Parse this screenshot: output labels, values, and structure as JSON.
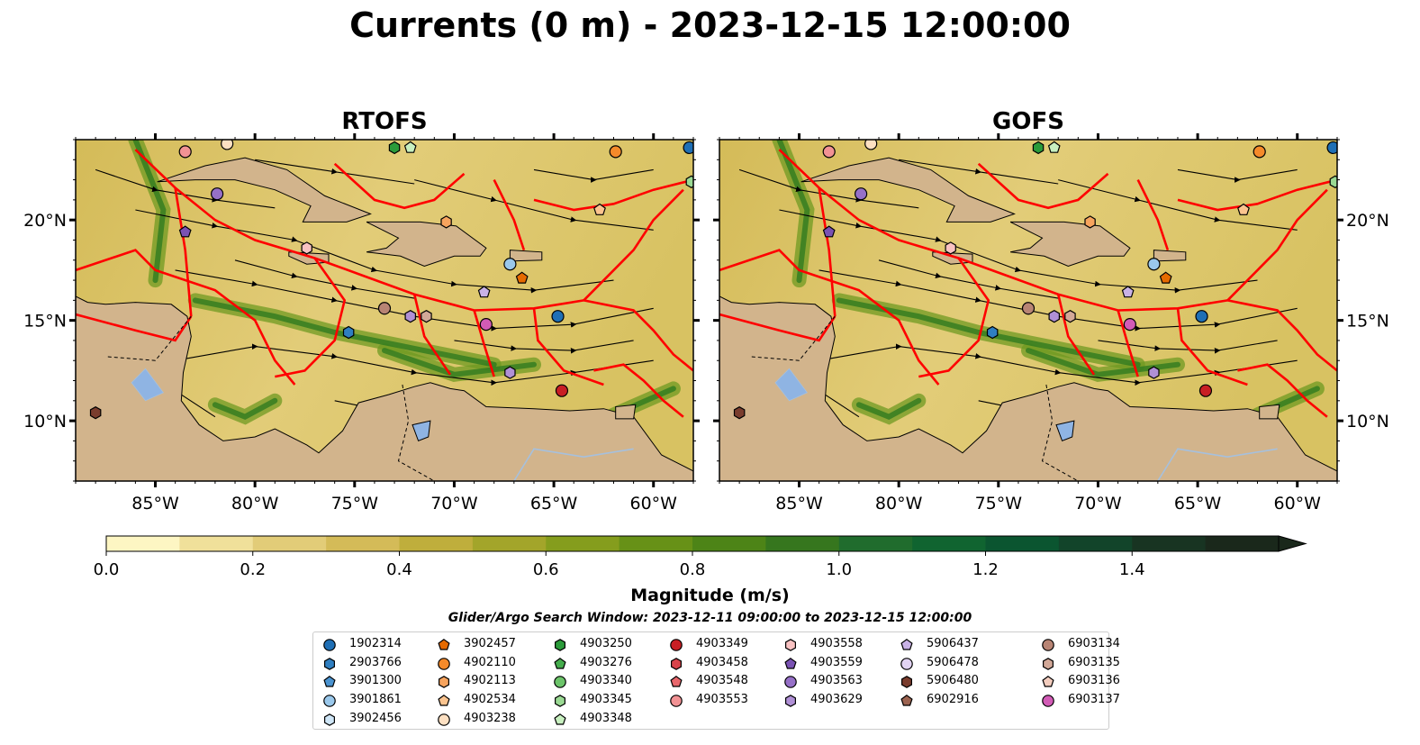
{
  "title": "Currents (0 m) - 2023-12-15 12:00:00",
  "colors": {
    "land": "#d2b48c",
    "land_border": "#000000",
    "lake": "#8fb4e3",
    "river": "#a6c0dd",
    "eez": "#ff0000",
    "streamline": "#000000"
  },
  "chart_data": [
    {
      "type": "streamplot-map",
      "title": "RTOFS",
      "xlim": [
        -89,
        -58
      ],
      "ylim": [
        7,
        24
      ],
      "xticks": [
        -85,
        -80,
        -75,
        -70,
        -65,
        -60
      ],
      "xtick_labels": [
        "85°W",
        "80°W",
        "75°W",
        "70°W",
        "65°W",
        "60°W"
      ],
      "yticks": [
        10,
        15,
        20
      ],
      "ytick_labels": [
        "10°N",
        "15°N",
        "20°N"
      ],
      "ytick_side": "left"
    },
    {
      "type": "streamplot-map",
      "title": "GOFS",
      "xlim": [
        -89,
        -58
      ],
      "ylim": [
        7,
        24
      ],
      "xticks": [
        -85,
        -80,
        -75,
        -70,
        -65,
        -60
      ],
      "xtick_labels": [
        "85°W",
        "80°W",
        "75°W",
        "70°W",
        "65°W",
        "60°W"
      ],
      "yticks": [
        10,
        15,
        20
      ],
      "ytick_labels": [
        "10°N",
        "15°N",
        "20°N"
      ],
      "ytick_side": "right"
    }
  ],
  "colorbar": {
    "label": "Magnitude (m/s)",
    "min": 0.0,
    "max": 1.6,
    "step": 0.1,
    "extend": "max",
    "ticks": [
      0.0,
      0.2,
      0.4,
      0.6,
      0.8,
      1.0,
      1.2,
      1.4
    ],
    "tick_labels": [
      "0.0",
      "0.2",
      "0.4",
      "0.6",
      "0.8",
      "1.0",
      "1.2",
      "1.4"
    ],
    "colors": [
      "#fdf6c3",
      "#f0e09a",
      "#e2cc78",
      "#d4bb58",
      "#bfae3c",
      "#a3a52a",
      "#859d1d",
      "#679117",
      "#4d8417",
      "#36761e",
      "#206c2d",
      "#106430",
      "#0b5530",
      "#12442a",
      "#183422",
      "#1a281b"
    ]
  },
  "search_window": "Glider/Argo Search Window: 2023-12-11 09:00:00 to 2023-12-15 12:00:00",
  "legend": {
    "columns": [
      [
        {
          "id": "1902314",
          "color": "#1f6fb5",
          "marker": "circle"
        },
        {
          "id": "2903766",
          "color": "#2f7fc1",
          "marker": "hexagon"
        },
        {
          "id": "3901300",
          "color": "#4a93d0",
          "marker": "pentagon"
        },
        {
          "id": "3901861",
          "color": "#9ac8eb",
          "marker": "circle"
        },
        {
          "id": "3902456",
          "color": "#cfe6f7",
          "marker": "hexagon"
        }
      ],
      [
        {
          "id": "3902457",
          "color": "#e66a00",
          "marker": "pentagon"
        },
        {
          "id": "4902110",
          "color": "#f58a2a",
          "marker": "circle"
        },
        {
          "id": "4902113",
          "color": "#f7a45e",
          "marker": "hexagon"
        },
        {
          "id": "4902534",
          "color": "#fbc48f",
          "marker": "pentagon"
        },
        {
          "id": "4903238",
          "color": "#fde0c2",
          "marker": "circle"
        }
      ],
      [
        {
          "id": "4903250",
          "color": "#2b9b3a",
          "marker": "hexagon"
        },
        {
          "id": "4903276",
          "color": "#45ad4d",
          "marker": "pentagon"
        },
        {
          "id": "4903340",
          "color": "#6cc46a",
          "marker": "circle"
        },
        {
          "id": "4903345",
          "color": "#9ad993",
          "marker": "hexagon"
        },
        {
          "id": "4903348",
          "color": "#c8f0c0",
          "marker": "pentagon"
        }
      ],
      [
        {
          "id": "4903349",
          "color": "#c81e24",
          "marker": "circle"
        },
        {
          "id": "4903458",
          "color": "#d9434a",
          "marker": "hexagon"
        },
        {
          "id": "4903548",
          "color": "#e8676c",
          "marker": "pentagon"
        },
        {
          "id": "4903553",
          "color": "#f29294",
          "marker": "circle"
        }
      ],
      [
        {
          "id": "4903558",
          "color": "#f9c2c2",
          "marker": "hexagon"
        },
        {
          "id": "4903559",
          "color": "#7a52b3",
          "marker": "pentagon"
        },
        {
          "id": "4903563",
          "color": "#9670c7",
          "marker": "circle"
        },
        {
          "id": "4903629",
          "color": "#b090d6",
          "marker": "hexagon"
        }
      ],
      [
        {
          "id": "5906437",
          "color": "#c9b2e6",
          "marker": "pentagon"
        },
        {
          "id": "5906478",
          "color": "#e2d4f3",
          "marker": "circle"
        },
        {
          "id": "5906480",
          "color": "#7a3d2e",
          "marker": "hexagon"
        },
        {
          "id": "6902916",
          "color": "#9c6350",
          "marker": "pentagon"
        }
      ],
      [
        {
          "id": "6903134",
          "color": "#b88474",
          "marker": "circle"
        },
        {
          "id": "6903135",
          "color": "#d2a898",
          "marker": "hexagon"
        },
        {
          "id": "6903136",
          "color": "#f3cdbe",
          "marker": "pentagon"
        },
        {
          "id": "6903137",
          "color": "#d25bb6",
          "marker": "circle"
        }
      ]
    ]
  },
  "markers_on_map": [
    {
      "id": "6903137",
      "lon": -68.4,
      "lat": 14.8
    },
    {
      "id": "4903563",
      "lon": -81.9,
      "lat": 21.3
    },
    {
      "id": "4903559",
      "lon": -83.5,
      "lat": 19.4
    },
    {
      "id": "4903553",
      "lon": -83.5,
      "lat": 23.4
    },
    {
      "id": "4903238",
      "lon": -81.4,
      "lat": 23.8
    },
    {
      "id": "4903250",
      "lon": -73.0,
      "lat": 23.6
    },
    {
      "id": "4903348",
      "lon": -72.2,
      "lat": 23.6
    },
    {
      "id": "4902110",
      "lon": -61.9,
      "lat": 23.4
    },
    {
      "id": "1902314",
      "lon": -58.2,
      "lat": 23.6
    },
    {
      "id": "4903345",
      "lon": -58.1,
      "lat": 21.9
    },
    {
      "id": "4902113",
      "lon": -70.4,
      "lat": 19.9
    },
    {
      "id": "4902534",
      "lon": -62.7,
      "lat": 20.5
    },
    {
      "id": "4903558",
      "lon": -77.4,
      "lat": 18.6
    },
    {
      "id": "3901861",
      "lon": -67.2,
      "lat": 17.8
    },
    {
      "id": "3902457",
      "lon": -66.6,
      "lat": 17.1
    },
    {
      "id": "5906437",
      "lon": -68.5,
      "lat": 16.4
    },
    {
      "id": "6903134",
      "lon": -73.5,
      "lat": 15.6
    },
    {
      "id": "4903629",
      "lon": -72.2,
      "lat": 15.2
    },
    {
      "id": "6903135",
      "lon": -71.4,
      "lat": 15.2
    },
    {
      "id": "1902314",
      "lon": -64.8,
      "lat": 15.2
    },
    {
      "id": "2903766",
      "lon": -75.3,
      "lat": 14.4
    },
    {
      "id": "4903629",
      "lon": -67.2,
      "lat": 12.4
    },
    {
      "id": "4903349",
      "lon": -64.6,
      "lat": 11.5
    },
    {
      "id": "5906480",
      "lon": -88.0,
      "lat": 10.4
    }
  ]
}
